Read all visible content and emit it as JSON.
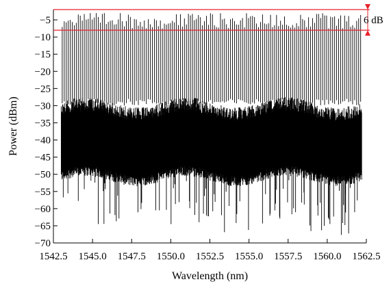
{
  "chart_data": {
    "type": "line",
    "title": "",
    "xlabel": "Wavelength (nm)",
    "ylabel": "Power (dBm)",
    "xlim": [
      1542.5,
      1562.5
    ],
    "ylim": [
      -70,
      -2
    ],
    "x_ticks": [
      1542.5,
      1545.0,
      1547.5,
      1550.0,
      1552.5,
      1555.0,
      1557.5,
      1560.0,
      1562.5
    ],
    "x_tick_labels": [
      "1542.5",
      "1545.0",
      "1547.5",
      "1550.0",
      "1552.5",
      "1555.0",
      "1557.5",
      "1560.0",
      "1562.5"
    ],
    "y_ticks": [
      -5,
      -10,
      -15,
      -20,
      -25,
      -30,
      -35,
      -40,
      -45,
      -50,
      -55,
      -60,
      -65,
      -70
    ],
    "y_tick_labels": [
      "−5",
      "−10",
      "−15",
      "−20",
      "−25",
      "−30",
      "−35",
      "−40",
      "−45",
      "−50",
      "−55",
      "−60",
      "−65",
      "−70"
    ],
    "grid": false,
    "series": [
      {
        "description_of_shape": "dense comb spectrum, peaks near -2 to -8 dBm, noise band -30 to -52 dBm, deep dips to -70",
        "x_range": [
          1543.0,
          1562.2
        ],
        "peak_level": -3,
        "noise_band": [
          -52,
          -29
        ]
      }
    ],
    "annotations": [
      {
        "text": "6 dB",
        "y_top": -2,
        "y_bottom": -8
      }
    ],
    "colors": {
      "trace": "#000000",
      "marker": "#e8212a"
    }
  }
}
